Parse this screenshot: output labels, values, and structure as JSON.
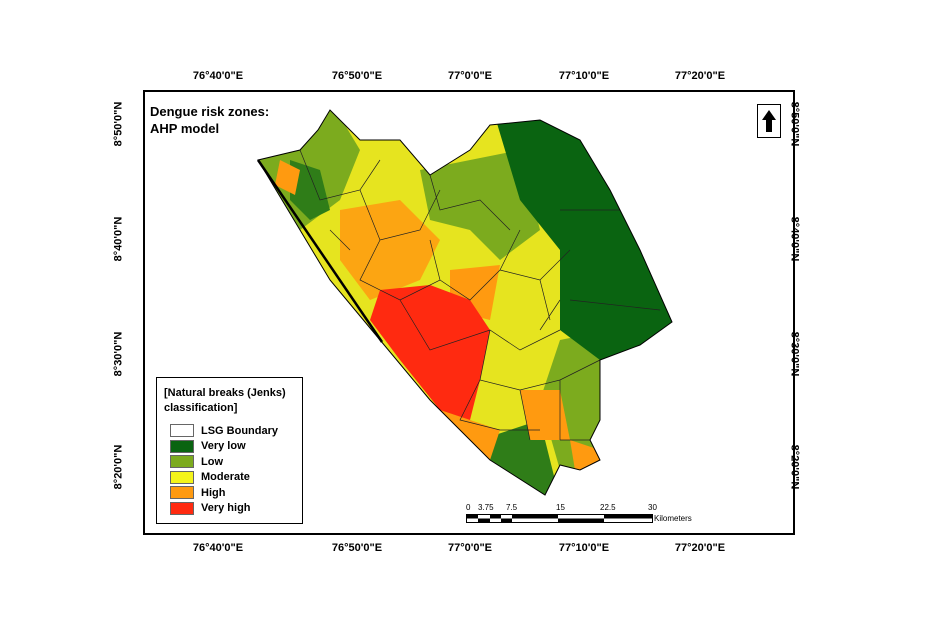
{
  "title": [
    "Dengue risk zones:",
    "AHP model"
  ],
  "longitude_labels": [
    "76°40'0\"E",
    "76°50'0\"E",
    "77°0'0\"E",
    "77°10'0\"E",
    "77°20'0\"E"
  ],
  "latitude_labels": [
    "8°50'0\"N",
    "8°40'0\"N",
    "8°30'0\"N",
    "8°20'0\"N"
  ],
  "north_arrow": "north-arrow-icon",
  "legend": {
    "heading": "[Natural breaks (Jenks) classification]",
    "items": [
      {
        "label": "LSG Boundary",
        "color": "#ffffff"
      },
      {
        "label": "Very low",
        "color": "#0a6411"
      },
      {
        "label": "Low",
        "color": "#7cab1e"
      },
      {
        "label": "Moderate",
        "color": "#f4f41a"
      },
      {
        "label": "High",
        "color": "#ff9a10"
      },
      {
        "label": "Very high",
        "color": "#ff2a10"
      }
    ]
  },
  "scale_bar": {
    "ticks": [
      "0",
      "3.75",
      "7.5",
      "15",
      "22.5",
      "30"
    ],
    "unit": "Kilometers"
  }
}
